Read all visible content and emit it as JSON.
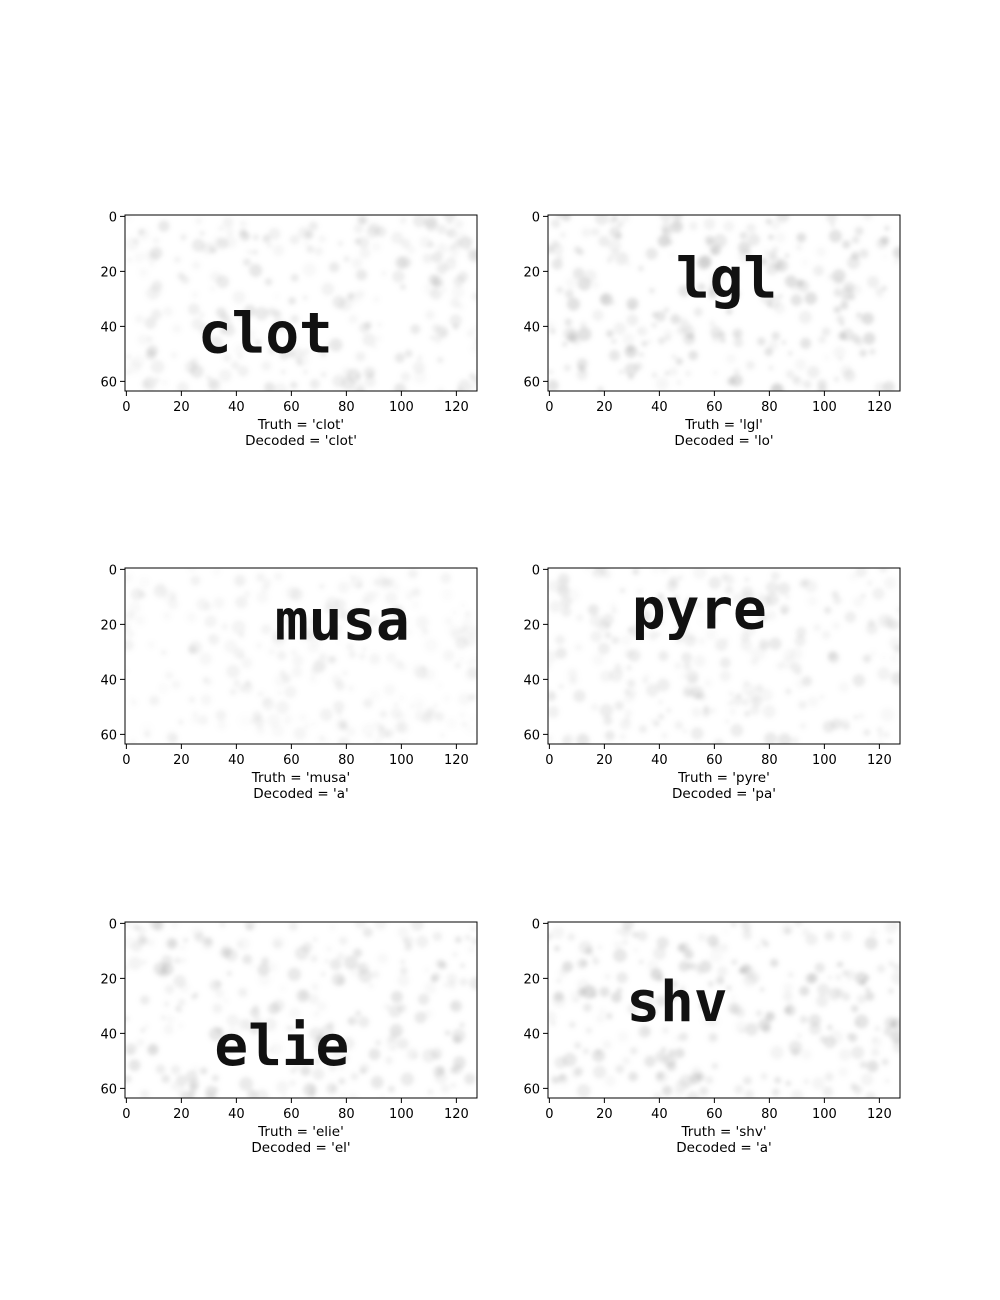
{
  "axes": {
    "x_ticks": [
      "0",
      "20",
      "40",
      "60",
      "80",
      "100",
      "120"
    ],
    "y_ticks": [
      "0",
      "20",
      "40",
      "60"
    ],
    "x_tick_values": [
      0,
      20,
      40,
      60,
      80,
      100,
      120
    ],
    "y_tick_values": [
      0,
      20,
      40,
      60
    ],
    "x_range": [
      -0.5,
      127.5
    ],
    "y_range": [
      63.5,
      -0.5
    ]
  },
  "panels": [
    {
      "word": "clot",
      "truth": "Truth = 'clot'",
      "decoded": "Decoded = 'clot'",
      "text_x": 26,
      "text_y": 44,
      "noise_level": 0.6
    },
    {
      "word": "lgl",
      "truth": "Truth = 'lgl'",
      "decoded": "Decoded = 'lo'",
      "text_x": 46,
      "text_y": 24,
      "noise_level": 0.8
    },
    {
      "word": "musa",
      "truth": "Truth = 'musa'",
      "decoded": "Decoded = 'a'",
      "text_x": 54,
      "text_y": 20,
      "noise_level": 0.35
    },
    {
      "word": "pyre",
      "truth": "Truth = 'pyre'",
      "decoded": "Decoded = 'pa'",
      "text_x": 30,
      "text_y": 16,
      "noise_level": 0.55
    },
    {
      "word": "elie",
      "truth": "Truth = 'elie'",
      "decoded": "Decoded = 'el'",
      "text_x": 32,
      "text_y": 46,
      "noise_level": 0.65
    },
    {
      "word": "shv",
      "truth": "Truth = 'shv'",
      "decoded": "Decoded = 'a'",
      "text_x": 28,
      "text_y": 30,
      "noise_level": 0.75
    }
  ],
  "colors": {
    "noise": "#9a9a9a",
    "text": "#111111",
    "background": "#ffffff"
  }
}
